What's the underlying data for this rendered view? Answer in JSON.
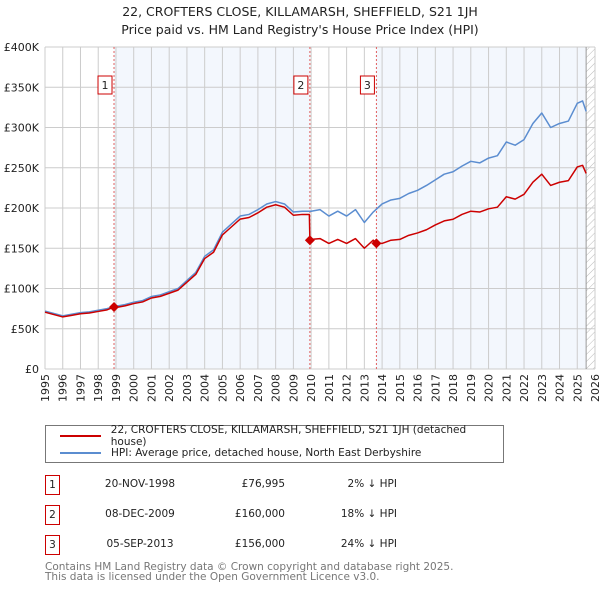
{
  "chart_data": {
    "type": "line",
    "title": "22, CROFTERS CLOSE, KILLAMARSH, SHEFFIELD, S21 1JH",
    "subtitle": "Price paid vs. HM Land Registry's House Price Index (HPI)",
    "xlim": [
      1995,
      2026
    ],
    "ylim": [
      0,
      400
    ],
    "x_ticks": [
      "1995",
      "1996",
      "1997",
      "1998",
      "1999",
      "2000",
      "2001",
      "2002",
      "2003",
      "2004",
      "2005",
      "2006",
      "2007",
      "2008",
      "2009",
      "2010",
      "2011",
      "2012",
      "2013",
      "2014",
      "2015",
      "2016",
      "2017",
      "2018",
      "2019",
      "2020",
      "2021",
      "2022",
      "2023",
      "2024",
      "2025",
      "2026"
    ],
    "y_ticks": [
      {
        "v": 0,
        "l": "£0"
      },
      {
        "v": 50,
        "l": "£50K"
      },
      {
        "v": 100,
        "l": "£100K"
      },
      {
        "v": 150,
        "l": "£150K"
      },
      {
        "v": 200,
        "l": "£200K"
      },
      {
        "v": 250,
        "l": "£250K"
      },
      {
        "v": 300,
        "l": "£300K"
      },
      {
        "v": 350,
        "l": "£350K"
      },
      {
        "v": 400,
        "l": "£400K"
      }
    ],
    "grid": true,
    "series": [
      {
        "name": "22, CROFTERS CLOSE, KILLAMARSH, SHEFFIELD, S21 1JH (detached house)",
        "color": "#cc0000",
        "points": [
          [
            1995,
            70.6
          ],
          [
            1995.5,
            67.6
          ],
          [
            1996,
            64.7
          ],
          [
            1996.5,
            66.6
          ],
          [
            1997,
            68.6
          ],
          [
            1997.5,
            69.6
          ],
          [
            1998,
            71.5
          ],
          [
            1998.5,
            73.5
          ],
          [
            1998.89,
            77
          ],
          [
            1999,
            76.4
          ],
          [
            1999.5,
            78.4
          ],
          [
            2000,
            81.3
          ],
          [
            2000.5,
            83.3
          ],
          [
            2001,
            88.2
          ],
          [
            2001.5,
            90.2
          ],
          [
            2002,
            94.1
          ],
          [
            2002.5,
            98
          ],
          [
            2003,
            107.8
          ],
          [
            2003.5,
            117.6
          ],
          [
            2004,
            137.2
          ],
          [
            2004.5,
            145
          ],
          [
            2005,
            166.6
          ],
          [
            2005.5,
            176.4
          ],
          [
            2006,
            186.2
          ],
          [
            2006.5,
            188.2
          ],
          [
            2007,
            194
          ],
          [
            2007.5,
            201
          ],
          [
            2008,
            204
          ],
          [
            2008.5,
            201
          ],
          [
            2009,
            191
          ],
          [
            2009.5,
            192
          ],
          [
            2009.9,
            192
          ],
          [
            2009.93,
            160
          ],
          [
            2010,
            161
          ],
          [
            2010.5,
            162
          ],
          [
            2011,
            156
          ],
          [
            2011.5,
            161
          ],
          [
            2012,
            156
          ],
          [
            2012.5,
            162
          ],
          [
            2013,
            150
          ],
          [
            2013.5,
            160
          ],
          [
            2013.68,
            156
          ],
          [
            2014,
            156
          ],
          [
            2014.5,
            160
          ],
          [
            2015,
            161
          ],
          [
            2015.5,
            166
          ],
          [
            2016,
            169
          ],
          [
            2016.5,
            173
          ],
          [
            2017,
            179
          ],
          [
            2017.5,
            184
          ],
          [
            2018,
            186
          ],
          [
            2018.5,
            192
          ],
          [
            2019,
            196
          ],
          [
            2019.5,
            195
          ],
          [
            2020,
            199
          ],
          [
            2020.5,
            201
          ],
          [
            2021,
            214
          ],
          [
            2021.5,
            211
          ],
          [
            2022,
            217
          ],
          [
            2022.5,
            232
          ],
          [
            2023,
            242
          ],
          [
            2023.5,
            228
          ],
          [
            2024,
            232
          ],
          [
            2024.5,
            234
          ],
          [
            2025,
            251
          ],
          [
            2025.3,
            253
          ],
          [
            2025.5,
            243
          ]
        ]
      },
      {
        "name": "HPI: Average price, detached house, North East Derbyshire",
        "color": "#5b8dd0",
        "points": [
          [
            1995,
            72
          ],
          [
            1995.5,
            69
          ],
          [
            1996,
            66
          ],
          [
            1996.5,
            68
          ],
          [
            1997,
            70
          ],
          [
            1997.5,
            71
          ],
          [
            1998,
            73
          ],
          [
            1998.5,
            75
          ],
          [
            1999,
            78
          ],
          [
            1999.5,
            80
          ],
          [
            2000,
            83
          ],
          [
            2000.5,
            85
          ],
          [
            2001,
            90
          ],
          [
            2001.5,
            92
          ],
          [
            2002,
            96
          ],
          [
            2002.5,
            100
          ],
          [
            2003,
            110
          ],
          [
            2003.5,
            120
          ],
          [
            2004,
            140
          ],
          [
            2004.5,
            148
          ],
          [
            2005,
            170
          ],
          [
            2005.5,
            180
          ],
          [
            2006,
            190
          ],
          [
            2006.5,
            192
          ],
          [
            2007,
            198
          ],
          [
            2007.5,
            205
          ],
          [
            2008,
            208
          ],
          [
            2008.5,
            205
          ],
          [
            2009,
            195
          ],
          [
            2009.5,
            196
          ],
          [
            2010,
            196
          ],
          [
            2010.5,
            198
          ],
          [
            2011,
            190
          ],
          [
            2011.5,
            196
          ],
          [
            2012,
            190
          ],
          [
            2012.5,
            198
          ],
          [
            2013,
            182
          ],
          [
            2013.5,
            195
          ],
          [
            2014,
            205
          ],
          [
            2014.5,
            210
          ],
          [
            2015,
            212
          ],
          [
            2015.5,
            218
          ],
          [
            2016,
            222
          ],
          [
            2016.5,
            228
          ],
          [
            2017,
            235
          ],
          [
            2017.5,
            242
          ],
          [
            2018,
            245
          ],
          [
            2018.5,
            252
          ],
          [
            2019,
            258
          ],
          [
            2019.5,
            256
          ],
          [
            2020,
            262
          ],
          [
            2020.5,
            265
          ],
          [
            2021,
            282
          ],
          [
            2021.5,
            278
          ],
          [
            2022,
            285
          ],
          [
            2022.5,
            305
          ],
          [
            2023,
            318
          ],
          [
            2023.5,
            300
          ],
          [
            2024,
            305
          ],
          [
            2024.5,
            308
          ],
          [
            2025,
            330
          ],
          [
            2025.3,
            333
          ],
          [
            2025.5,
            320
          ]
        ]
      }
    ],
    "sales": [
      {
        "n": "1",
        "x": 1998.89,
        "y": 76.995
      },
      {
        "n": "2",
        "x": 2009.93,
        "y": 160
      },
      {
        "n": "3",
        "x": 2013.68,
        "y": 156
      }
    ],
    "data_end": 2025.5
  },
  "table": [
    {
      "n": "1",
      "date": "20-NOV-1998",
      "price": "£76,995",
      "hpi": "2% ↓ HPI"
    },
    {
      "n": "2",
      "date": "08-DEC-2009",
      "price": "£160,000",
      "hpi": "18% ↓ HPI"
    },
    {
      "n": "3",
      "date": "05-SEP-2013",
      "price": "£156,000",
      "hpi": "24% ↓ HPI"
    }
  ],
  "footer": [
    "Contains HM Land Registry data © Crown copyright and database right 2025.",
    "This data is licensed under the Open Government Licence v3.0."
  ]
}
